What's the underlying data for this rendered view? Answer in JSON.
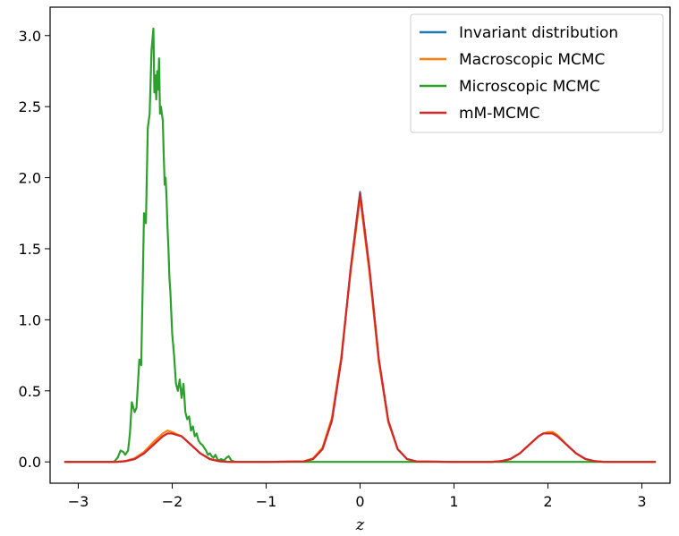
{
  "chart_data": {
    "type": "line",
    "xlabel": "z",
    "ylabel": "",
    "xlim": [
      -3.3,
      3.3
    ],
    "ylim": [
      -0.15,
      3.2
    ],
    "x_ticks": [
      -3,
      -2,
      -1,
      0,
      1,
      2,
      3
    ],
    "x_tick_labels": [
      "−3",
      "−2",
      "−1",
      "0",
      "1",
      "2",
      "3"
    ],
    "y_ticks": [
      0.0,
      0.5,
      1.0,
      1.5,
      2.0,
      2.5,
      3.0
    ],
    "y_tick_labels": [
      "0.0",
      "0.5",
      "1.0",
      "1.5",
      "2.0",
      "2.5",
      "3.0"
    ],
    "grid": false,
    "legend": "top-right",
    "series": [
      {
        "name": "Invariant distribution",
        "color": "#1f77b4",
        "x": [
          -3.14,
          -2.6,
          -2.5,
          -2.4,
          -2.3,
          -2.2,
          -2.1,
          -2.05,
          -2.0,
          -1.9,
          -1.8,
          -1.7,
          -1.6,
          -1.5,
          -1.4,
          -1.0,
          -0.6,
          -0.5,
          -0.4,
          -0.3,
          -0.2,
          -0.1,
          0.0,
          0.1,
          0.2,
          0.3,
          0.4,
          0.5,
          0.6,
          1.0,
          1.4,
          1.5,
          1.6,
          1.7,
          1.8,
          1.9,
          1.95,
          2.0,
          2.05,
          2.1,
          2.2,
          2.3,
          2.4,
          2.5,
          2.6,
          3.14
        ],
        "y": [
          0.0,
          0.0,
          0.005,
          0.02,
          0.06,
          0.12,
          0.18,
          0.2,
          0.2,
          0.18,
          0.12,
          0.06,
          0.02,
          0.005,
          0.0,
          0.0,
          0.003,
          0.02,
          0.09,
          0.29,
          0.72,
          1.36,
          1.9,
          1.36,
          0.72,
          0.29,
          0.09,
          0.02,
          0.003,
          0.0,
          0.0,
          0.005,
          0.02,
          0.06,
          0.12,
          0.18,
          0.2,
          0.2,
          0.2,
          0.18,
          0.12,
          0.06,
          0.02,
          0.005,
          0.0,
          0.0
        ]
      },
      {
        "name": "Macroscopic MCMC",
        "color": "#ff7f0e",
        "x": [
          -3.14,
          -2.6,
          -2.5,
          -2.4,
          -2.3,
          -2.2,
          -2.1,
          -2.05,
          -2.0,
          -1.9,
          -1.8,
          -1.7,
          -1.6,
          -1.5,
          -1.4,
          -1.0,
          -0.6,
          -0.5,
          -0.4,
          -0.3,
          -0.2,
          -0.1,
          0.0,
          0.1,
          0.2,
          0.3,
          0.4,
          0.5,
          0.6,
          1.0,
          1.4,
          1.5,
          1.6,
          1.7,
          1.8,
          1.9,
          1.95,
          2.0,
          2.05,
          2.1,
          2.2,
          2.3,
          2.4,
          2.5,
          2.6,
          3.14
        ],
        "y": [
          0.0,
          0.0,
          0.006,
          0.025,
          0.07,
          0.14,
          0.2,
          0.22,
          0.21,
          0.18,
          0.12,
          0.06,
          0.02,
          0.005,
          0.0,
          0.0,
          0.004,
          0.025,
          0.1,
          0.31,
          0.74,
          1.34,
          1.86,
          1.33,
          0.7,
          0.28,
          0.09,
          0.02,
          0.003,
          0.0,
          0.0,
          0.005,
          0.02,
          0.06,
          0.12,
          0.18,
          0.2,
          0.21,
          0.21,
          0.19,
          0.12,
          0.06,
          0.02,
          0.005,
          0.0,
          0.0
        ]
      },
      {
        "name": "Microscopic MCMC",
        "color": "#2ca02c",
        "x": [
          -3.14,
          -2.62,
          -2.58,
          -2.55,
          -2.52,
          -2.5,
          -2.47,
          -2.45,
          -2.43,
          -2.4,
          -2.38,
          -2.35,
          -2.33,
          -2.3,
          -2.28,
          -2.26,
          -2.24,
          -2.22,
          -2.2,
          -2.19,
          -2.18,
          -2.17,
          -2.16,
          -2.15,
          -2.14,
          -2.13,
          -2.12,
          -2.11,
          -2.1,
          -2.09,
          -2.08,
          -2.07,
          -2.06,
          -2.05,
          -2.04,
          -2.03,
          -2.02,
          -2.0,
          -1.98,
          -1.96,
          -1.94,
          -1.92,
          -1.9,
          -1.88,
          -1.86,
          -1.84,
          -1.82,
          -1.8,
          -1.78,
          -1.76,
          -1.74,
          -1.72,
          -1.7,
          -1.68,
          -1.66,
          -1.64,
          -1.62,
          -1.6,
          -1.58,
          -1.56,
          -1.54,
          -1.52,
          -1.5,
          -1.48,
          -1.45,
          -1.42,
          -1.4,
          -1.37,
          -1.33,
          3.14
        ],
        "y": [
          0.0,
          0.0,
          0.03,
          0.08,
          0.07,
          0.05,
          0.08,
          0.2,
          0.42,
          0.35,
          0.38,
          0.72,
          0.68,
          1.75,
          1.68,
          2.35,
          2.45,
          2.9,
          3.05,
          2.6,
          2.72,
          2.55,
          2.75,
          2.62,
          2.84,
          2.45,
          2.5,
          2.45,
          2.4,
          2.15,
          1.95,
          2.0,
          1.85,
          1.65,
          1.5,
          1.3,
          1.2,
          0.9,
          0.75,
          0.55,
          0.5,
          0.58,
          0.45,
          0.55,
          0.35,
          0.3,
          0.32,
          0.22,
          0.25,
          0.18,
          0.2,
          0.15,
          0.13,
          0.12,
          0.1,
          0.08,
          0.05,
          0.06,
          0.04,
          0.03,
          0.05,
          0.02,
          0.01,
          0.02,
          0.01,
          0.03,
          0.04,
          0.01,
          0.0,
          0.0
        ]
      },
      {
        "name": "mM-MCMC",
        "color": "#d62728",
        "x": [
          -3.14,
          -2.6,
          -2.5,
          -2.4,
          -2.3,
          -2.2,
          -2.1,
          -2.05,
          -2.0,
          -1.9,
          -1.8,
          -1.7,
          -1.6,
          -1.5,
          -1.4,
          -1.0,
          -0.6,
          -0.5,
          -0.4,
          -0.3,
          -0.2,
          -0.1,
          0.0,
          0.1,
          0.2,
          0.3,
          0.4,
          0.5,
          0.6,
          1.0,
          1.4,
          1.5,
          1.6,
          1.7,
          1.8,
          1.9,
          1.95,
          2.0,
          2.05,
          2.1,
          2.2,
          2.3,
          2.4,
          2.5,
          2.6,
          3.14
        ],
        "y": [
          0.0,
          0.0,
          0.005,
          0.02,
          0.06,
          0.12,
          0.18,
          0.2,
          0.2,
          0.18,
          0.12,
          0.06,
          0.02,
          0.005,
          0.0,
          0.0,
          0.003,
          0.02,
          0.09,
          0.29,
          0.72,
          1.36,
          1.89,
          1.36,
          0.72,
          0.29,
          0.09,
          0.02,
          0.003,
          0.0,
          0.0,
          0.005,
          0.02,
          0.06,
          0.12,
          0.18,
          0.2,
          0.2,
          0.2,
          0.18,
          0.12,
          0.06,
          0.02,
          0.005,
          0.0,
          0.0
        ]
      }
    ]
  }
}
